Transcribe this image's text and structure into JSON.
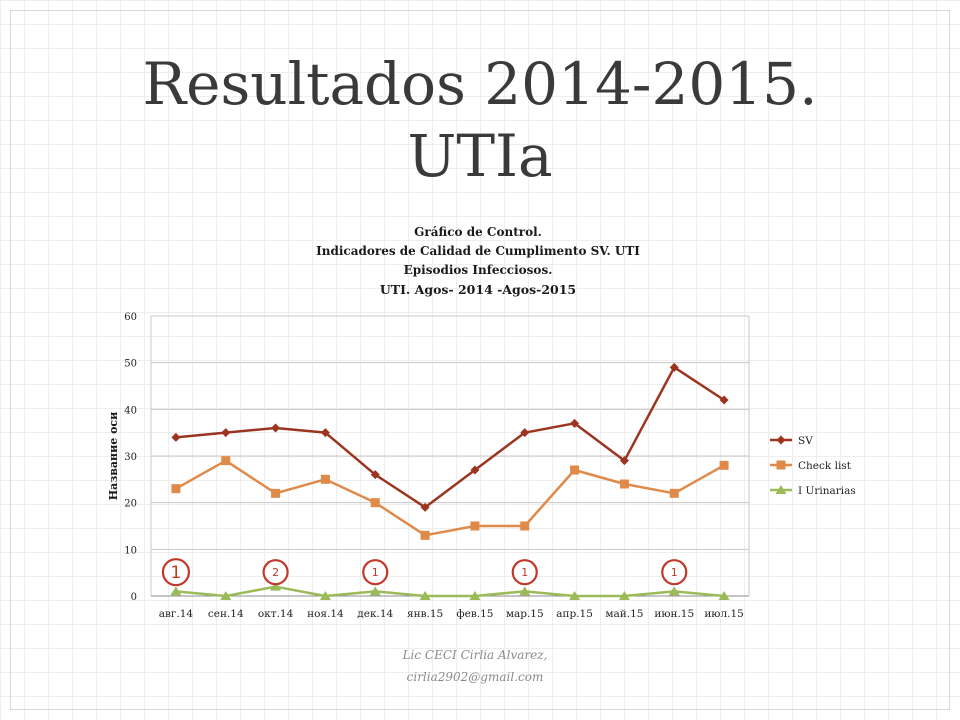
{
  "slide": {
    "title_line1": "Resultados 2014-2015.",
    "title_line2": "UTIa"
  },
  "credit": {
    "line1": "Lic CECI Cirlia Alvarez,",
    "line2": "cirlia2902@gmail.com"
  },
  "chart_data": {
    "type": "line",
    "title_lines": [
      "Gráfico de Control.",
      "Indicadores de Calidad de Cumplimento SV. UTI",
      "Episodios Infecciosos.",
      "UTI. Agos- 2014 -Agos-2015"
    ],
    "xlabel": "",
    "ylabel": "Название оси",
    "ylim": [
      0,
      60
    ],
    "yticks": [
      "0",
      "10",
      "20",
      "30",
      "40",
      "50",
      "60"
    ],
    "ytick_values": [
      0,
      10,
      20,
      30,
      40,
      50,
      60
    ],
    "grid": true,
    "legend_position": "right",
    "categories": [
      "авг.14",
      "сен.14",
      "окт.14",
      "ноя.14",
      "дек.14",
      "янв.15",
      "фев.15",
      "мар.15",
      "апр.15",
      "май.15",
      "июн.15",
      "июл.15"
    ],
    "series": [
      {
        "name": "SV",
        "color": "#9b3520",
        "marker": "diamond",
        "values": [
          34,
          35,
          36,
          35,
          26,
          19,
          27,
          35,
          37,
          29,
          49,
          42
        ]
      },
      {
        "name": "Check list",
        "color": "#e08a4a",
        "marker": "square",
        "values": [
          23,
          29,
          22,
          25,
          20,
          13,
          15,
          15,
          27,
          24,
          22,
          28
        ]
      },
      {
        "name": "I Urinarias",
        "color": "#9bbb59",
        "marker": "triangle",
        "values": [
          1,
          0,
          2,
          0,
          1,
          0,
          0,
          1,
          0,
          0,
          1,
          0
        ]
      }
    ],
    "annotations": [
      {
        "label": "1",
        "category_index": 0,
        "y": 5
      },
      {
        "label": "2",
        "category_index": 2,
        "y": 5
      },
      {
        "label": "1",
        "category_index": 4,
        "y": 5
      },
      {
        "label": "1",
        "category_index": 7,
        "y": 5
      },
      {
        "label": "1",
        "category_index": 10,
        "y": 5
      }
    ],
    "annotation_color": "#c0392b"
  }
}
